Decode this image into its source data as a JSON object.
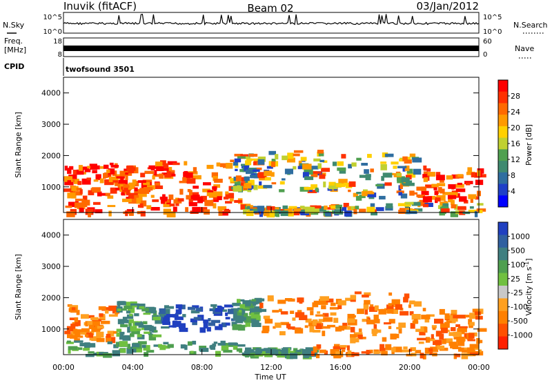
{
  "header": {
    "station": "Inuvik (fitACF)",
    "beam": "Beam 02",
    "date": "03/Jan/2012"
  },
  "sky_panel": {
    "label_left": "N.Sky",
    "label_right": "N.Search",
    "ticks_left": [
      "10^5",
      "10^0"
    ],
    "ticks_right": [
      "10^5",
      "10^0"
    ]
  },
  "freq_panel": {
    "label_left_1": "Freq.",
    "label_left_2": "[MHz]",
    "label_right": "Nave",
    "ticks_left": [
      "18",
      "8"
    ],
    "ticks_right": [
      "60",
      "0"
    ]
  },
  "cpid": {
    "label": "CPID",
    "mode": "twofsound 3501"
  },
  "chart_data": [
    {
      "type": "heatmap",
      "name": "power",
      "ylabel": "Slant Range [km]",
      "yticks": [
        "1000",
        "2000",
        "3000",
        "4000"
      ],
      "ylim": [
        180,
        4500
      ],
      "colorbar_label": "Power [dB]",
      "colorbar_ticks": [
        "28",
        "24",
        "20",
        "16",
        "12",
        "8",
        "4"
      ],
      "colorbar_colors": [
        "#ff0000",
        "#ff3000",
        "#ff6a00",
        "#ff9a00",
        "#ffd000",
        "#c0d030",
        "#50a050",
        "#3f8a70",
        "#2f6ea0",
        "#1f40c8",
        "#0000ff"
      ],
      "regions": [
        {
          "x0": 0.0,
          "x1": 3.2,
          "y0": 700,
          "y1": 1800,
          "level": "high"
        },
        {
          "x0": 3.2,
          "x1": 5.3,
          "y0": 600,
          "y1": 1700,
          "level": "high"
        },
        {
          "x0": 5.3,
          "x1": 9.6,
          "y0": 650,
          "y1": 1900,
          "level": "high"
        },
        {
          "x0": 9.6,
          "x1": 11.3,
          "y0": 1000,
          "y1": 2100,
          "level": "mid"
        },
        {
          "x0": 11.3,
          "x1": 16.3,
          "y0": 900,
          "y1": 2200,
          "level": "mid"
        },
        {
          "x0": 16.3,
          "x1": 20.3,
          "y0": 700,
          "y1": 2100,
          "level": "mid"
        },
        {
          "x0": 20.3,
          "x1": 24.0,
          "y0": 500,
          "y1": 1700,
          "level": "high"
        },
        {
          "x0": 0.0,
          "x1": 10.3,
          "y0": 200,
          "y1": 650,
          "level": "high"
        },
        {
          "x0": 10.3,
          "x1": 14.3,
          "y0": 200,
          "y1": 420,
          "level": "mid"
        },
        {
          "x0": 14.3,
          "x1": 24.0,
          "y0": 200,
          "y1": 520,
          "level": "mid"
        }
      ]
    },
    {
      "type": "heatmap",
      "name": "velocity",
      "ylabel": "Slant Range [km]",
      "yticks": [
        "1000",
        "2000",
        "3000",
        "4000"
      ],
      "ylim": [
        180,
        4500
      ],
      "xlabel": "Time UT",
      "xticks": [
        "00:00",
        "04:00",
        "08:00",
        "12:00",
        "16:00",
        "20:00",
        "00:00"
      ],
      "xlim": [
        0,
        24
      ],
      "colorbar_label": "Velocity [m s",
      "colorbar_label_sup": "-1",
      "colorbar_label_tail": "]",
      "colorbar_ticks": [
        "1000",
        "500",
        "100",
        "25",
        "-25",
        "-100",
        "-500",
        "-1000"
      ],
      "colorbar_colors": [
        "#2040c0",
        "#3060a0",
        "#3f7f80",
        "#4f9f50",
        "#70c040",
        "#c8c8c8",
        "#ffa020",
        "#ff8000",
        "#ff5000",
        "#ff2000"
      ],
      "regions": [
        {
          "x0": 0.0,
          "x1": 3.0,
          "y0": 700,
          "y1": 1800,
          "level": "orange"
        },
        {
          "x0": 3.0,
          "x1": 5.3,
          "y0": 800,
          "y1": 1900,
          "level": "green"
        },
        {
          "x0": 5.3,
          "x1": 9.7,
          "y0": 1000,
          "y1": 1800,
          "level": "blue"
        },
        {
          "x0": 9.7,
          "x1": 11.3,
          "y0": 1100,
          "y1": 2000,
          "level": "green"
        },
        {
          "x0": 11.3,
          "x1": 16.3,
          "y0": 900,
          "y1": 2100,
          "level": "orange"
        },
        {
          "x0": 16.3,
          "x1": 20.3,
          "y0": 700,
          "y1": 2200,
          "level": "orange"
        },
        {
          "x0": 20.3,
          "x1": 24.0,
          "y0": 500,
          "y1": 1700,
          "level": "orange"
        },
        {
          "x0": 0.0,
          "x1": 10.3,
          "y0": 200,
          "y1": 650,
          "level": "green"
        },
        {
          "x0": 10.3,
          "x1": 14.3,
          "y0": 200,
          "y1": 420,
          "level": "green"
        },
        {
          "x0": 14.3,
          "x1": 24.0,
          "y0": 200,
          "y1": 520,
          "level": "orange"
        }
      ]
    }
  ]
}
